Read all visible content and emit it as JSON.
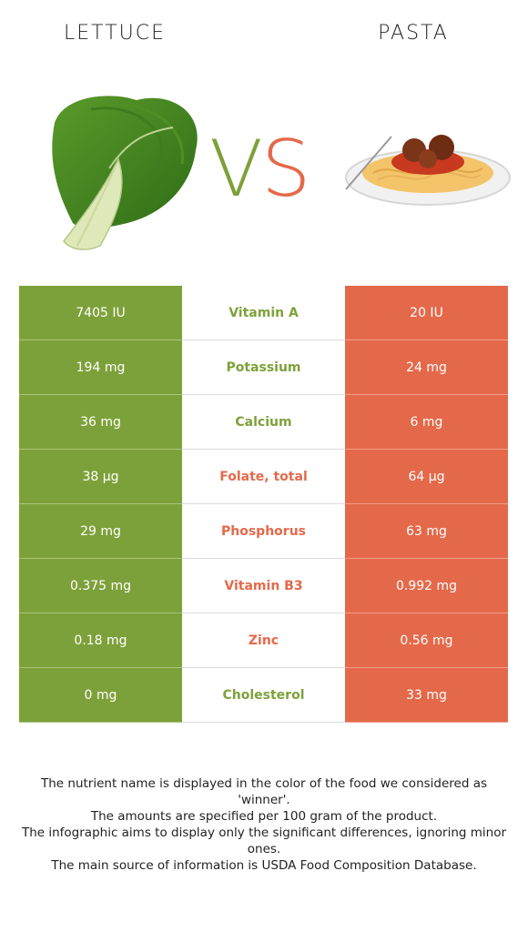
{
  "header": {
    "left_food": "LETTUCE",
    "right_food": "PASTA",
    "vs_v": "V",
    "vs_s": "S"
  },
  "colors": {
    "left_winner": "#7da13a",
    "right_winner": "#e4694a"
  },
  "rows": [
    {
      "left": "7405 IU",
      "nutrient": "Vitamin A",
      "right": "20 IU",
      "winner": "left"
    },
    {
      "left": "194 mg",
      "nutrient": "Potassium",
      "right": "24 mg",
      "winner": "left"
    },
    {
      "left": "36 mg",
      "nutrient": "Calcium",
      "right": "6 mg",
      "winner": "left"
    },
    {
      "left": "38 µg",
      "nutrient": "Folate, total",
      "right": "64 µg",
      "winner": "right"
    },
    {
      "left": "29 mg",
      "nutrient": "Phosphorus",
      "right": "63 mg",
      "winner": "right"
    },
    {
      "left": "0.375 mg",
      "nutrient": "Vitamin B3",
      "right": "0.992 mg",
      "winner": "right"
    },
    {
      "left": "0.18 mg",
      "nutrient": "Zinc",
      "right": "0.56 mg",
      "winner": "right"
    },
    {
      "left": "0 mg",
      "nutrient": "Cholesterol",
      "right": "33 mg",
      "winner": "left"
    }
  ],
  "footnotes": [
    "The nutrient name is displayed in the color of the food we considered as 'winner'.",
    "The amounts are specified per 100 gram of the product.",
    "The infographic aims to display only the significant differences, ignoring minor ones.",
    "The main source of information is USDA Food Composition Database."
  ]
}
